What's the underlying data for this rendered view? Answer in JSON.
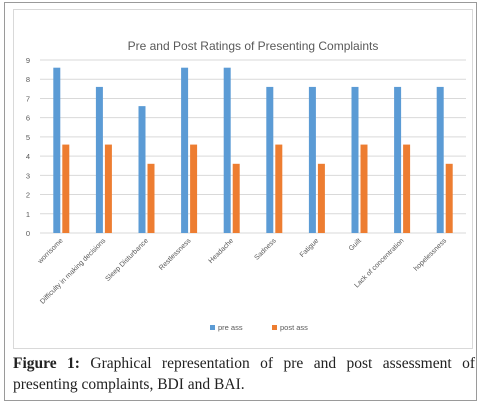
{
  "chart_data": {
    "type": "bar",
    "title": "Pre and Post Ratings of Presenting Complaints",
    "categories": [
      "worrisome",
      "Difficulty in making decisions",
      "Sleep Disturbance",
      "Restlessness",
      "Headache",
      "Sadness",
      "Fatigue",
      "Guilt",
      "Lack of concentration",
      "hopelessness"
    ],
    "series": [
      {
        "name": "pre ass",
        "values": [
          8.6,
          7.6,
          6.6,
          8.6,
          8.6,
          7.6,
          7.6,
          7.6,
          7.6,
          7.6
        ]
      },
      {
        "name": "post ass",
        "values": [
          4.6,
          4.6,
          3.6,
          4.6,
          3.6,
          4.6,
          3.6,
          4.6,
          4.6,
          3.6
        ]
      }
    ],
    "ylim": [
      0,
      9
    ],
    "yticks": [
      "0",
      "1",
      "2",
      "3",
      "4",
      "5",
      "6",
      "7",
      "8",
      "9"
    ],
    "xlabel": "",
    "ylabel": "",
    "grid": true,
    "legend_position": "bottom",
    "colors": {
      "pre ass": "#5b9bd5",
      "post ass": "#ed7d31"
    }
  },
  "caption": {
    "label": "Figure 1:",
    "text": " Graphical representation of pre and post assessment of presenting complaints, BDI and BAI."
  }
}
